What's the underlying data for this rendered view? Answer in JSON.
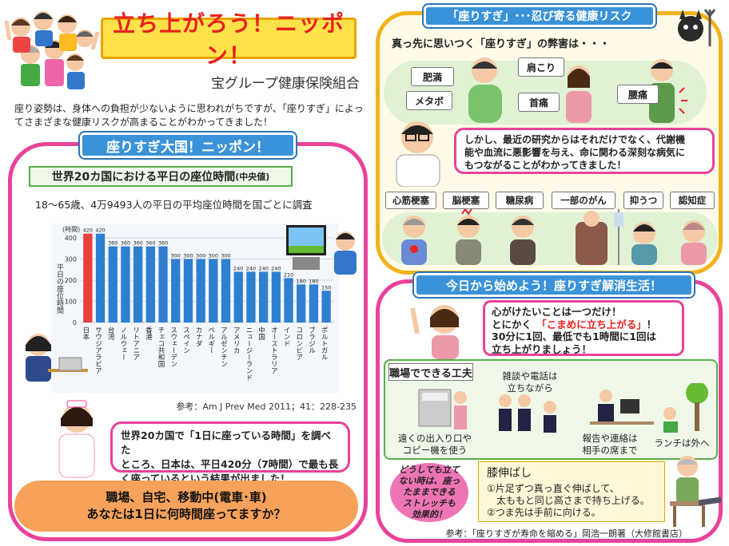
{
  "header": {
    "title": "立ち上がろう！ニッポン！",
    "org": "宝グループ健康保険組合",
    "intro": "座り姿勢は、身体への負担が少ないように思われがちですが、「座りすぎ」によってさまざまな健康リスクが高まることがわかってきました！"
  },
  "left": {
    "banner": "座りすぎ大国！ニッポン！",
    "chart_title": "世界20カ国における平日の座位時間",
    "chart_title_suffix": "(中央値)",
    "chart_sub": "18～65歳、4万9493人の平日の平均座位時間を国ごとに調査",
    "chart_ref": "参考：Am J Prev Med 2011；41：228-235",
    "bubble": [
      "世界20カ国で「1日に座っている時間」を調べた",
      "ところ、日本は、平日420分（7時間）で最も長",
      "く座っているという結果が出ました！"
    ],
    "oval": [
      "職場、自宅、移動中(電車･車)",
      "あなたは1日に何時間座ってますか？"
    ]
  },
  "chart_data": {
    "type": "bar",
    "ylabel": "平日の座位時間",
    "yunit": "(時間)",
    "ylim": [
      0,
      400
    ],
    "yticks": [
      0,
      100,
      200,
      300,
      400
    ],
    "grid": true,
    "categories": [
      "日本",
      "サウジアラビア",
      "台湾",
      "ノルウェー",
      "リトアニア",
      "香港",
      "チェコ共和国",
      "スウェーデン",
      "スペイン",
      "カナダ",
      "ベルギー",
      "アルゼンチン",
      "アメリカ",
      "ニュージーランド",
      "中国",
      "オーストラリア",
      "インド",
      "コロンビア",
      "ブラジル",
      "ポルトガル"
    ],
    "values": [
      420,
      420,
      360,
      360,
      360,
      360,
      360,
      300,
      300,
      300,
      300,
      300,
      240,
      240,
      240,
      240,
      210,
      180,
      180,
      150
    ],
    "colors": {
      "highlight": "#e8413a",
      "bar": "#2f7fd1"
    }
  },
  "right_top": {
    "banner": "「座りすぎ」･･･忍び寄る健康リスク",
    "question": "真っ先に思いつく「座りすぎ」の弊害は・・・",
    "ailments": [
      "肥満",
      "肩こり",
      "メタボ",
      "首痛",
      "腰痛"
    ],
    "bubble": [
      "しかし、最近の研究からはそれだけでなく、代謝機",
      "能や血流に悪影響を与え、命に関わる深刻な病気に",
      "もつながることがわかってきました！"
    ],
    "diseases": [
      "心筋梗塞",
      "脳梗塞",
      "糖尿病",
      "一部のがん",
      "抑うつ",
      "認知症"
    ]
  },
  "right_bottom": {
    "banner": "今日から始めよう！座りすぎ解消生活！",
    "tip": {
      "line1": "心がけたいことは一つだけ！",
      "line2_pre": "とにかく　",
      "line2_em": "「こまめに立ち上がる」",
      "line2_post": "！",
      "line3": "30分に1回、最低でも1時間に1回は",
      "line4": "立ち上がりましょう！"
    },
    "work_title": "職場でできる工夫",
    "work_items": [
      [
        "雑談や電話は",
        "立ちながら"
      ],
      [
        "遠くの出入り口や",
        "コピー機を使う"
      ],
      [
        "報告や連絡は",
        "相手の席まで"
      ],
      [
        "ランチは外へ"
      ]
    ],
    "stretch_note": [
      "どうしても立て",
      "ない時は、座っ",
      "たままできる",
      "ストレッチも",
      "効果的！"
    ],
    "stretch_title": "膝伸ばし",
    "stretch_steps": [
      "①片足ずつ真っ直ぐ伸ばして、",
      "　太ももと同じ高さまで持ち上げる。",
      "②つま先は手前に向ける。"
    ],
    "ref": "参考：「座りすぎが寿命を縮める」岡浩一朗著（大修館書店）"
  }
}
